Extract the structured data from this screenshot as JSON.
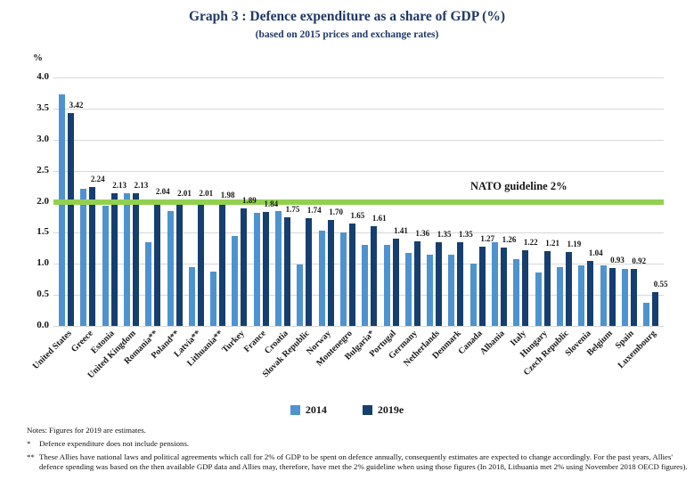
{
  "chart_data": {
    "type": "bar",
    "title": "Graph 3 : Defence expenditure as a share of GDP (%)",
    "subtitle": "(based on 2015 prices and exchange rates)",
    "ylabel": "%",
    "ylim": [
      0,
      4.0
    ],
    "ytick_step": 0.5,
    "grid": "horizontal",
    "legend_position": "bottom",
    "categories": [
      "United States",
      "Greece",
      "Estonia",
      "United Kingdom",
      "Romania**",
      "Poland**",
      "Latvia**",
      "Lithuania**",
      "Turkey",
      "France",
      "Croatia",
      "Slovak Republic",
      "Norway",
      "Montenegro",
      "Bulgaria*",
      "Portugal",
      "Germany",
      "Netherlands",
      "Denmark",
      "Canada",
      "Albania",
      "Italy",
      "Hungary",
      "Czech Republic",
      "Slovenia",
      "Belgium",
      "Spain",
      "Luxembourg"
    ],
    "series": [
      {
        "name": "2014",
        "color": "#4E93CF",
        "values": [
          3.73,
          2.21,
          1.93,
          2.14,
          1.35,
          1.85,
          0.94,
          0.88,
          1.45,
          1.82,
          1.85,
          0.99,
          1.53,
          1.5,
          1.31,
          1.31,
          1.18,
          1.15,
          1.15,
          1.01,
          1.35,
          1.08,
          0.86,
          0.94,
          0.97,
          0.97,
          0.92,
          0.38
        ],
        "data_labels_shown": false
      },
      {
        "name": "2019e",
        "color": "#163F70",
        "values": [
          3.42,
          2.24,
          2.13,
          2.13,
          2.04,
          2.01,
          2.01,
          1.98,
          1.89,
          1.84,
          1.75,
          1.74,
          1.7,
          1.65,
          1.61,
          1.41,
          1.36,
          1.35,
          1.35,
          1.27,
          1.26,
          1.22,
          1.21,
          1.19,
          1.04,
          0.93,
          0.92,
          0.55
        ],
        "data_labels_shown": true
      }
    ],
    "reference_line": {
      "value": 2.0,
      "label": "NATO guideline 2%",
      "color": "#92D050"
    },
    "gridline_color": "#D8D8D8"
  },
  "notes": {
    "general": "Notes: Figures for 2019 are estimates.",
    "star_marker": "*",
    "star_text": "Defence expenditure does not include pensions.",
    "dstar_marker": "**",
    "dstar_text": "These Allies have national laws and political agreements which call for 2% of GDP to be spent on defence annually, consequently estimates are expected to change accordingly. For the past years, Allies' defence spending was based on the then available GDP data and Allies may, therefore, have met the 2% guideline when using those figures (In 2018, Lithuania met 2% using November 2018 OECD figures)."
  }
}
